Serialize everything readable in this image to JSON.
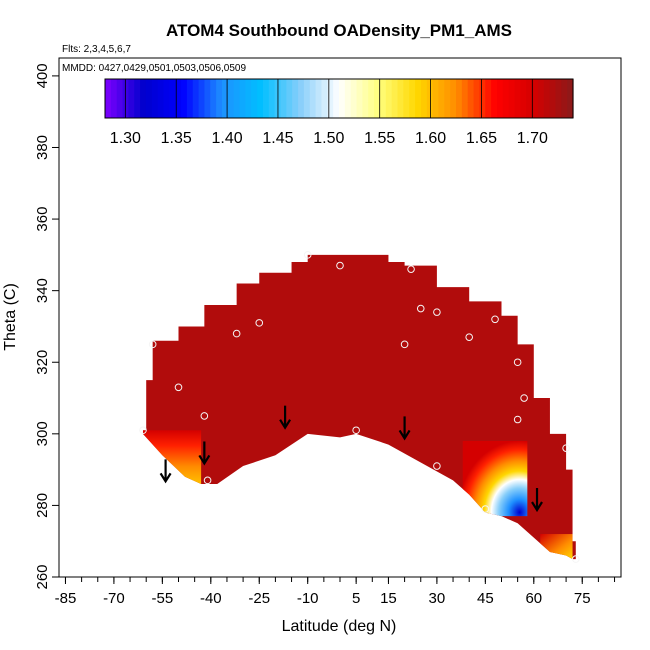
{
  "chart_data": {
    "type": "heatmap",
    "title": "ATOM4 Southbound OADensity_PM1_AMS",
    "flights_note": "Flts: 2,3,4,5,6,7",
    "dates_note": "MMDD: 0427,0429,0501,0503,0506,0509",
    "xlabel": "Latitude (deg N)",
    "ylabel": "Theta (C)",
    "xlim": [
      -87,
      87
    ],
    "ylim": [
      260,
      405
    ],
    "x_ticks": [
      -85,
      -70,
      -55,
      -40,
      -25,
      -10,
      5,
      15,
      30,
      45,
      60,
      75
    ],
    "y_ticks": [
      260,
      280,
      300,
      320,
      340,
      360,
      380,
      400
    ],
    "colorbar": {
      "range": [
        1.28,
        1.74
      ],
      "ticks": [
        1.3,
        1.35,
        1.4,
        1.45,
        1.5,
        1.55,
        1.6,
        1.65,
        1.7
      ],
      "tick_labels": [
        "1.30",
        "1.35",
        "1.40",
        "1.45",
        "1.50",
        "1.55",
        "1.60",
        "1.65",
        "1.70"
      ],
      "colors": [
        "#7f00ff",
        "#0000cd",
        "#0000ff",
        "#1e90ff",
        "#00bfff",
        "#87cefa",
        "#ffffff",
        "#ffff80",
        "#ffd700",
        "#ff8c00",
        "#ff0000",
        "#d40000",
        "#8b1a1a"
      ]
    },
    "field": {
      "background_value": 1.72,
      "upper_boundary": [
        [
          -61,
          301
        ],
        [
          -60,
          315
        ],
        [
          -58,
          326
        ],
        [
          -50,
          330
        ],
        [
          -42,
          336
        ],
        [
          -32,
          342
        ],
        [
          -25,
          345
        ],
        [
          -15,
          348
        ],
        [
          -10,
          350
        ],
        [
          5,
          350
        ],
        [
          15,
          348
        ],
        [
          20,
          347
        ],
        [
          30,
          341
        ],
        [
          40,
          337
        ],
        [
          50,
          333
        ],
        [
          55,
          325
        ],
        [
          60,
          310
        ],
        [
          65,
          300
        ],
        [
          70,
          290
        ],
        [
          72,
          270
        ],
        [
          73,
          265
        ]
      ],
      "lower_boundary": [
        [
          -61,
          300
        ],
        [
          -55,
          294
        ],
        [
          -48,
          288
        ],
        [
          -43,
          286
        ],
        [
          -38,
          286
        ],
        [
          -30,
          291
        ],
        [
          -20,
          294
        ],
        [
          -10,
          300
        ],
        [
          0,
          299
        ],
        [
          5,
          300
        ],
        [
          15,
          297
        ],
        [
          25,
          292
        ],
        [
          35,
          287
        ],
        [
          40,
          283
        ],
        [
          45,
          278
        ],
        [
          50,
          277
        ],
        [
          55,
          275
        ],
        [
          60,
          271
        ],
        [
          65,
          267
        ],
        [
          70,
          266
        ],
        [
          72,
          265
        ]
      ],
      "gradient_regions": [
        {
          "name": "left-flank",
          "lat_range": [
            -61,
            -43
          ],
          "theta_range": [
            284,
            301
          ],
          "values_low_to_high": [
            1.62,
            1.72
          ]
        },
        {
          "name": "right-trough",
          "lat_range": [
            38,
            58
          ],
          "theta_range": [
            277,
            298
          ],
          "values_low_to_high": [
            1.3,
            1.72
          ]
        },
        {
          "name": "right-foot",
          "lat_range": [
            62,
            72
          ],
          "theta_range": [
            265,
            272
          ],
          "values_low_to_high": [
            1.64,
            1.72
          ]
        }
      ]
    },
    "sample_points": [
      [
        -61,
        301
      ],
      [
        -58,
        325
      ],
      [
        -50,
        313
      ],
      [
        -42,
        305
      ],
      [
        -41,
        287
      ],
      [
        -32,
        328
      ],
      [
        -25,
        331
      ],
      [
        -10,
        350
      ],
      [
        0,
        347
      ],
      [
        5,
        301
      ],
      [
        20,
        325
      ],
      [
        22,
        346
      ],
      [
        25,
        335
      ],
      [
        30,
        334
      ],
      [
        30,
        291
      ],
      [
        40,
        327
      ],
      [
        45,
        279
      ],
      [
        48,
        332
      ],
      [
        55,
        320
      ],
      [
        55,
        304
      ],
      [
        57,
        310
      ],
      [
        70,
        296
      ],
      [
        73,
        265
      ]
    ],
    "flight_arrows": [
      [
        -54,
        287
      ],
      [
        -42,
        292
      ],
      [
        -17,
        302
      ],
      [
        20,
        299
      ],
      [
        61,
        279
      ]
    ]
  }
}
